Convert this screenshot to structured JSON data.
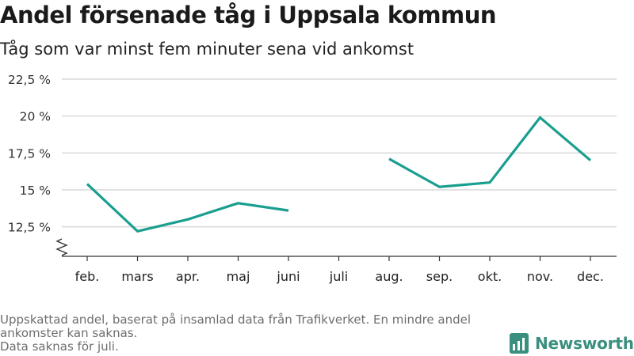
{
  "header": {
    "title": "Andel försenade tåg i Uppsala kommun",
    "subtitle": "Tåg som var minst fem minuter sena vid ankomst"
  },
  "chart_data": {
    "type": "line",
    "categories": [
      "feb.",
      "mars",
      "apr.",
      "maj",
      "juni",
      "juli",
      "aug.",
      "sep.",
      "okt.",
      "nov.",
      "dec."
    ],
    "series": [
      {
        "values": [
          15.4,
          12.2,
          13.0,
          14.1,
          13.6,
          null,
          17.1,
          15.2,
          15.5,
          19.9,
          17.0
        ]
      }
    ],
    "yticks": [
      12.5,
      15,
      17.5,
      20,
      22.5
    ],
    "ytick_labels": [
      "12,5 %",
      "15 %",
      "17,5 %",
      "20 %",
      "22,5 %"
    ],
    "ylim": [
      10.5,
      22.5
    ],
    "grid": true,
    "broken_axis": true,
    "line_color": "#1a9e8f",
    "grid_color": "#d9d9d9",
    "axis_color": "#333333"
  },
  "footer": {
    "note_line1": "Uppskattad andel, baserat på insamlad data från Trafikverket. En mindre andel ankomster kan saknas.",
    "note_line2": "Data saknas för juli.",
    "brand": "Newsworthy",
    "brand_color": "#3a8f7f"
  }
}
